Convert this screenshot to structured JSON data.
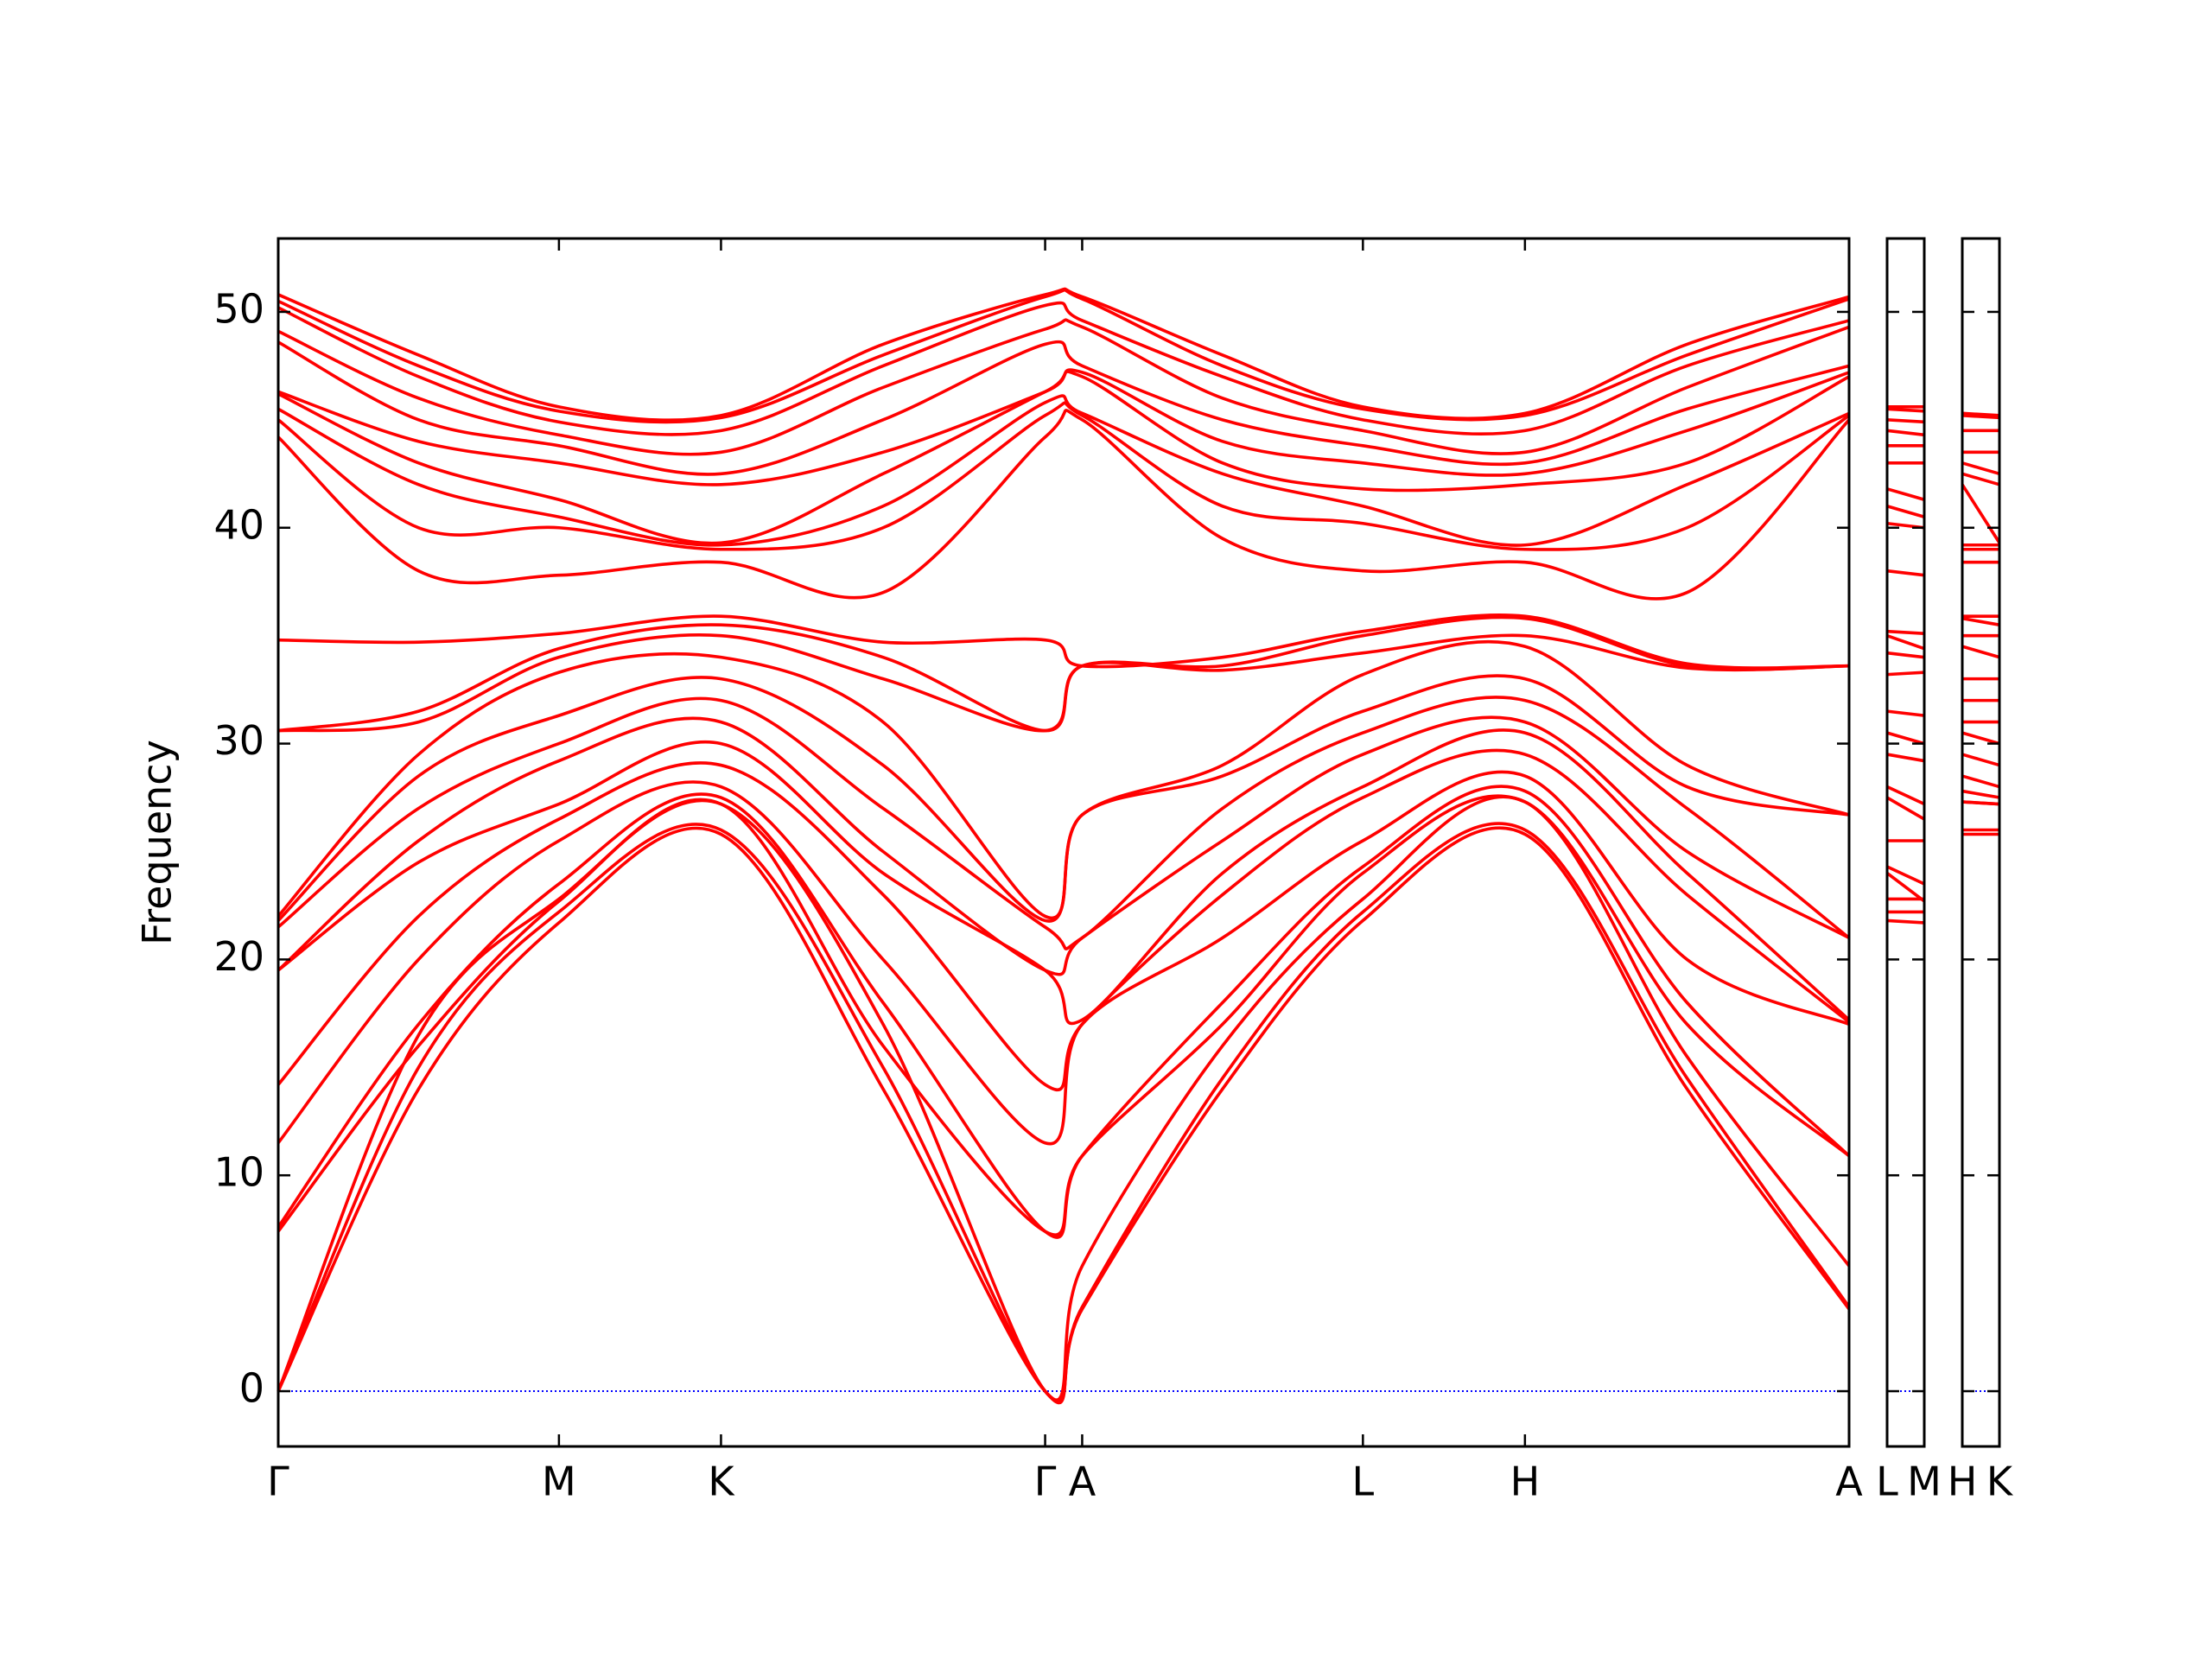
{
  "chart_data": [
    {
      "type": "line",
      "color": "#ff0000",
      "ylabel": "Frequency",
      "x": [
        0,
        0.2887,
        0.5774,
        0.9107,
        1.2441,
        1.5774,
        1.6536,
        1.9423,
        2.231,
        2.5643,
        2.8977,
        3.231
      ],
      "xlim": [
        0,
        3.231
      ],
      "ylim": [
        -2.56,
        53.4
      ],
      "yticks": [
        0,
        10,
        20,
        30,
        40,
        50
      ],
      "xticks": [
        {
          "value": 0,
          "label": "Γ"
        },
        {
          "value": 0.5774,
          "label": "M"
        },
        {
          "value": 0.9107,
          "label": "K"
        },
        {
          "value": 1.5774,
          "label": "Γ"
        },
        {
          "value": 1.6536,
          "label": "A"
        },
        {
          "value": 2.231,
          "label": "L"
        },
        {
          "value": 2.5643,
          "label": "H"
        },
        {
          "value": 3.231,
          "label": "A"
        }
      ],
      "zero_line": {
        "value": 0,
        "color": "#0000ff"
      },
      "series": [
        {
          "values": [
            0,
            14,
            21.7,
            25.8,
            14,
            0,
            3.8,
            14,
            21.8,
            25.8,
            14,
            3.8
          ]
        },
        {
          "values": [
            0,
            15,
            22.2,
            26,
            15,
            0,
            3.9,
            14.5,
            22.2,
            26,
            14.5,
            3.9
          ]
        },
        {
          "values": [
            0,
            16.5,
            22.8,
            27.2,
            17,
            0,
            5.8,
            16,
            22.8,
            27.3,
            15.5,
            5.8
          ]
        },
        {
          "values": [
            7.4,
            16,
            22.7,
            27.2,
            16,
            7.4,
            10.9,
            17,
            24,
            27.3,
            17,
            10.9
          ]
        },
        {
          "values": [
            7.6,
            17,
            23.5,
            27.5,
            18,
            7.4,
            10.9,
            18,
            24.3,
            27.8,
            18,
            10.9
          ]
        },
        {
          "values": [
            11.5,
            20,
            25.5,
            28,
            20,
            11.5,
            17,
            21,
            25.5,
            28.5,
            20,
            17
          ]
        },
        {
          "values": [
            14.2,
            22,
            26.5,
            29,
            23,
            14.2,
            17,
            23,
            27.5,
            29.5,
            23,
            17.1
          ]
        },
        {
          "values": [
            19.5,
            24.5,
            27.2,
            30,
            24,
            19.5,
            17.2,
            24,
            28,
            30.5,
            24,
            17.2
          ]
        },
        {
          "values": [
            19.5,
            25.5,
            29.2,
            31,
            25,
            19.5,
            21,
            25.5,
            29.5,
            31,
            25,
            21
          ]
        },
        {
          "values": [
            21.5,
            27,
            30,
            32,
            27,
            21.5,
            21,
            27,
            30.5,
            32,
            27,
            21
          ]
        },
        {
          "values": [
            21.8,
            28.5,
            31.3,
            33,
            29,
            21.8,
            26.7,
            28.5,
            31.5,
            33,
            28,
            26.7
          ]
        },
        {
          "values": [
            22,
            29.5,
            33.3,
            34,
            31,
            22,
            26.7,
            29,
            33.2,
            34.5,
            29,
            26.7
          ]
        },
        {
          "values": [
            30.6,
            31,
            34,
            35,
            33,
            30.6,
            33.6,
            33.4,
            34.2,
            35,
            33.5,
            33.6
          ]
        },
        {
          "values": [
            30.6,
            31.5,
            34.4,
            35.5,
            34,
            30.6,
            33.6,
            33.6,
            35,
            35.8,
            33.6,
            33.6
          ]
        },
        {
          "values": [
            34.8,
            34.7,
            35.1,
            35.9,
            34.7,
            34.8,
            33.6,
            34,
            35.2,
            35.9,
            33.7,
            33.6
          ]
        },
        {
          "values": [
            44.2,
            38,
            37.8,
            38.4,
            37,
            44.2,
            45,
            39.5,
            38,
            38.4,
            37,
            45
          ]
        },
        {
          "values": [
            45,
            40,
            40,
            39,
            40,
            45.2,
            45.2,
            41,
            40.2,
            39,
            40,
            45.2
          ]
        },
        {
          "values": [
            45.5,
            42,
            40.5,
            39.2,
            41,
            45.8,
            45.3,
            42.5,
            41,
            39.2,
            42,
            45.3
          ]
        },
        {
          "values": [
            46.2,
            43,
            41.3,
            39.3,
            42.5,
            46.3,
            47,
            43,
            41.8,
            42,
            43,
            47
          ]
        },
        {
          "values": [
            46.3,
            44,
            43,
            42,
            43.5,
            46.3,
            47.2,
            44,
            43,
            42.5,
            44.5,
            47.2
          ]
        },
        {
          "values": [
            48.6,
            45,
            43.8,
            42.5,
            45,
            48.5,
            47.5,
            45,
            43.8,
            43,
            45.5,
            47.5
          ]
        },
        {
          "values": [
            49.1,
            46,
            44.3,
            43.5,
            46.5,
            49.2,
            49.3,
            46,
            44.5,
            43.5,
            46.5,
            49.3
          ]
        },
        {
          "values": [
            50.2,
            47,
            44.9,
            44.5,
            47.5,
            50.3,
            49.6,
            47,
            45,
            44.5,
            47.5,
            49.6
          ]
        },
        {
          "values": [
            50.5,
            47.5,
            45.4,
            45.1,
            48,
            50.7,
            50.6,
            47.5,
            45.5,
            45.2,
            48,
            50.6
          ]
        },
        {
          "values": [
            50.8,
            48,
            45.6,
            45.2,
            48.5,
            50.8,
            50.7,
            48,
            45.6,
            45.3,
            48.5,
            50.7
          ]
        }
      ]
    },
    {
      "type": "line",
      "color": "#ff0000",
      "x": [
        0,
        0.0762
      ],
      "xlim": [
        0,
        0.0762
      ],
      "ylim": [
        -2.56,
        53.4
      ],
      "xticks": [
        {
          "value": 0,
          "label": "L"
        },
        {
          "value": 0.0762,
          "label": "M"
        }
      ],
      "series": [
        {
          "values": [
            21.8,
            21.7
          ]
        },
        {
          "values": [
            22.2,
            22.2
          ]
        },
        {
          "values": [
            22.8,
            22.8
          ]
        },
        {
          "values": [
            24,
            22.7
          ]
        },
        {
          "values": [
            24.3,
            23.5
          ]
        },
        {
          "values": [
            25.5,
            25.5
          ]
        },
        {
          "values": [
            27.5,
            26.5
          ]
        },
        {
          "values": [
            28,
            27.2
          ]
        },
        {
          "values": [
            29.5,
            29.2
          ]
        },
        {
          "values": [
            30.5,
            30
          ]
        },
        {
          "values": [
            31.5,
            31.3
          ]
        },
        {
          "values": [
            33.2,
            33.3
          ]
        },
        {
          "values": [
            34.2,
            34
          ]
        },
        {
          "values": [
            35,
            34.4
          ]
        },
        {
          "values": [
            35.2,
            35.1
          ]
        },
        {
          "values": [
            38,
            37.8
          ]
        },
        {
          "values": [
            40.2,
            40
          ]
        },
        {
          "values": [
            41,
            40.5
          ]
        },
        {
          "values": [
            41.8,
            41.3
          ]
        },
        {
          "values": [
            43,
            43
          ]
        },
        {
          "values": [
            43.8,
            43.8
          ]
        },
        {
          "values": [
            44.5,
            44.3
          ]
        },
        {
          "values": [
            45,
            44.9
          ]
        },
        {
          "values": [
            45.5,
            45.4
          ]
        },
        {
          "values": [
            45.6,
            45.6
          ]
        }
      ]
    },
    {
      "type": "line",
      "color": "#ff0000",
      "x": [
        0,
        0.0762
      ],
      "xlim": [
        0,
        0.0762
      ],
      "ylim": [
        -2.56,
        53.4
      ],
      "xticks": [
        {
          "value": 0,
          "label": "H"
        },
        {
          "value": 0.0762,
          "label": "K"
        }
      ],
      "series": [
        {
          "values": [
            25.8,
            25.8
          ]
        },
        {
          "values": [
            26,
            26
          ]
        },
        {
          "values": [
            27.3,
            27.2
          ]
        },
        {
          "values": [
            27.3,
            27.2
          ]
        },
        {
          "values": [
            27.8,
            27.5
          ]
        },
        {
          "values": [
            28.5,
            28
          ]
        },
        {
          "values": [
            29.5,
            29
          ]
        },
        {
          "values": [
            30.5,
            30
          ]
        },
        {
          "values": [
            31,
            31
          ]
        },
        {
          "values": [
            32,
            32
          ]
        },
        {
          "values": [
            33,
            33
          ]
        },
        {
          "values": [
            34.5,
            34
          ]
        },
        {
          "values": [
            35,
            35
          ]
        },
        {
          "values": [
            35.8,
            35.5
          ]
        },
        {
          "values": [
            35.9,
            35.9
          ]
        },
        {
          "values": [
            38.4,
            38.4
          ]
        },
        {
          "values": [
            39,
            39
          ]
        },
        {
          "values": [
            39.2,
            39.2
          ]
        },
        {
          "values": [
            42,
            39.3
          ]
        },
        {
          "values": [
            42.5,
            42
          ]
        },
        {
          "values": [
            43,
            42.5
          ]
        },
        {
          "values": [
            43.5,
            43.5
          ]
        },
        {
          "values": [
            44.5,
            44.5
          ]
        },
        {
          "values": [
            45.2,
            45.1
          ]
        },
        {
          "values": [
            45.3,
            45.2
          ]
        }
      ]
    }
  ]
}
